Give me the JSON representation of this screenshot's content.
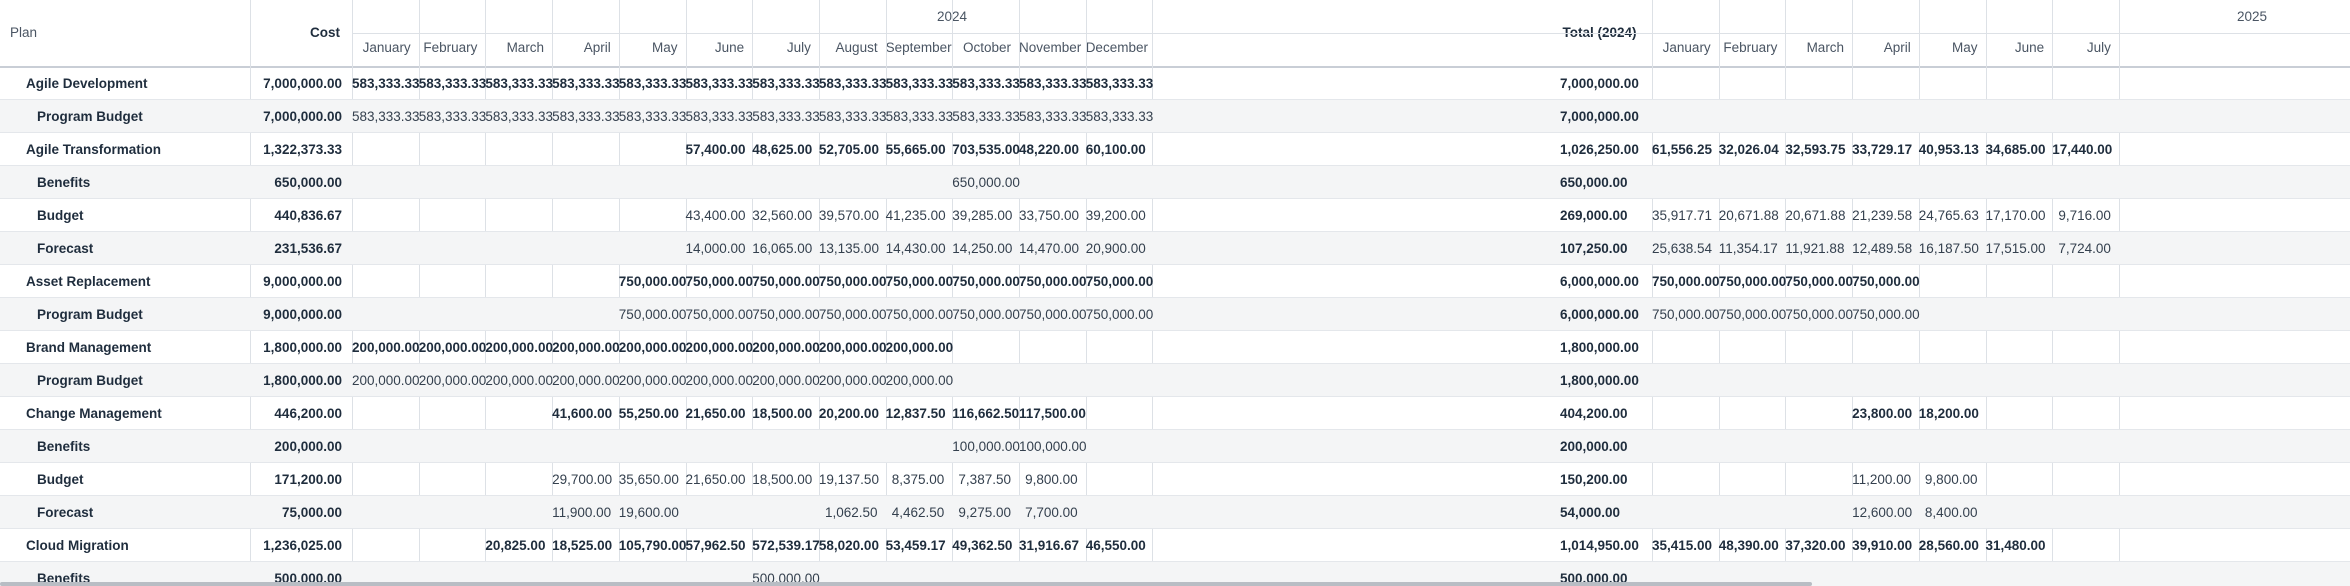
{
  "header": {
    "plan_label": "Plan",
    "cost_label": "Cost",
    "year_2024": "2024",
    "total_2024_label": "Total (2024)",
    "year_2025": "2025",
    "months_2024": [
      "January",
      "February",
      "March",
      "April",
      "May",
      "June",
      "July",
      "August",
      "September",
      "October",
      "November",
      "December"
    ],
    "months_2025": [
      "January",
      "February",
      "March",
      "April",
      "May",
      "June",
      "July"
    ]
  },
  "rows": [
    {
      "name": "Agile Development",
      "level": 0,
      "cost": "7,000,000.00",
      "m": [
        "583,333.33",
        "583,333.33",
        "583,333.33",
        "583,333.33",
        "583,333.33",
        "583,333.33",
        "583,333.33",
        "583,333.33",
        "583,333.33",
        "583,333.33",
        "583,333.33",
        "583,333.33"
      ],
      "total": "7,000,000.00",
      "n": [
        "",
        "",
        "",
        "",
        "",
        "",
        ""
      ]
    },
    {
      "name": "Program Budget",
      "level": 1,
      "cost": "7,000,000.00",
      "m": [
        "583,333.33",
        "583,333.33",
        "583,333.33",
        "583,333.33",
        "583,333.33",
        "583,333.33",
        "583,333.33",
        "583,333.33",
        "583,333.33",
        "583,333.33",
        "583,333.33",
        "583,333.33"
      ],
      "total": "7,000,000.00",
      "n": [
        "",
        "",
        "",
        "",
        "",
        "",
        ""
      ]
    },
    {
      "name": "Agile Transformation",
      "level": 0,
      "cost": "1,322,373.33",
      "m": [
        "",
        "",
        "",
        "",
        "",
        "57,400.00",
        "48,625.00",
        "52,705.00",
        "55,665.00",
        "703,535.00",
        "48,220.00",
        "60,100.00"
      ],
      "total": "1,026,250.00",
      "n": [
        "61,556.25",
        "32,026.04",
        "32,593.75",
        "33,729.17",
        "40,953.13",
        "34,685.00",
        "17,440.00"
      ]
    },
    {
      "name": "Benefits",
      "level": 1,
      "cost": "650,000.00",
      "m": [
        "",
        "",
        "",
        "",
        "",
        "",
        "",
        "",
        "",
        "650,000.00",
        "",
        ""
      ],
      "total": "650,000.00",
      "n": [
        "",
        "",
        "",
        "",
        "",
        "",
        ""
      ]
    },
    {
      "name": "Budget",
      "level": 1,
      "cost": "440,836.67",
      "m": [
        "",
        "",
        "",
        "",
        "",
        "43,400.00",
        "32,560.00",
        "39,570.00",
        "41,235.00",
        "39,285.00",
        "33,750.00",
        "39,200.00"
      ],
      "total": "269,000.00",
      "n": [
        "35,917.71",
        "20,671.88",
        "20,671.88",
        "21,239.58",
        "24,765.63",
        "17,170.00",
        "9,716.00"
      ]
    },
    {
      "name": "Forecast",
      "level": 1,
      "cost": "231,536.67",
      "m": [
        "",
        "",
        "",
        "",
        "",
        "14,000.00",
        "16,065.00",
        "13,135.00",
        "14,430.00",
        "14,250.00",
        "14,470.00",
        "20,900.00"
      ],
      "total": "107,250.00",
      "n": [
        "25,638.54",
        "11,354.17",
        "11,921.88",
        "12,489.58",
        "16,187.50",
        "17,515.00",
        "7,724.00"
      ]
    },
    {
      "name": "Asset Replacement",
      "level": 0,
      "cost": "9,000,000.00",
      "m": [
        "",
        "",
        "",
        "",
        "750,000.00",
        "750,000.00",
        "750,000.00",
        "750,000.00",
        "750,000.00",
        "750,000.00",
        "750,000.00",
        "750,000.00"
      ],
      "total": "6,000,000.00",
      "n": [
        "750,000.00",
        "750,000.00",
        "750,000.00",
        "750,000.00",
        "",
        "",
        ""
      ]
    },
    {
      "name": "Program Budget",
      "level": 1,
      "cost": "9,000,000.00",
      "m": [
        "",
        "",
        "",
        "",
        "750,000.00",
        "750,000.00",
        "750,000.00",
        "750,000.00",
        "750,000.00",
        "750,000.00",
        "750,000.00",
        "750,000.00"
      ],
      "total": "6,000,000.00",
      "n": [
        "750,000.00",
        "750,000.00",
        "750,000.00",
        "750,000.00",
        "",
        "",
        ""
      ]
    },
    {
      "name": "Brand Management",
      "level": 0,
      "cost": "1,800,000.00",
      "m": [
        "200,000.00",
        "200,000.00",
        "200,000.00",
        "200,000.00",
        "200,000.00",
        "200,000.00",
        "200,000.00",
        "200,000.00",
        "200,000.00",
        "",
        "",
        ""
      ],
      "total": "1,800,000.00",
      "n": [
        "",
        "",
        "",
        "",
        "",
        "",
        ""
      ]
    },
    {
      "name": "Program Budget",
      "level": 1,
      "cost": "1,800,000.00",
      "m": [
        "200,000.00",
        "200,000.00",
        "200,000.00",
        "200,000.00",
        "200,000.00",
        "200,000.00",
        "200,000.00",
        "200,000.00",
        "200,000.00",
        "",
        "",
        ""
      ],
      "total": "1,800,000.00",
      "n": [
        "",
        "",
        "",
        "",
        "",
        "",
        ""
      ]
    },
    {
      "name": "Change Management",
      "level": 0,
      "cost": "446,200.00",
      "m": [
        "",
        "",
        "",
        "41,600.00",
        "55,250.00",
        "21,650.00",
        "18,500.00",
        "20,200.00",
        "12,837.50",
        "116,662.50",
        "117,500.00",
        ""
      ],
      "total": "404,200.00",
      "n": [
        "",
        "",
        "",
        "23,800.00",
        "18,200.00",
        "",
        ""
      ]
    },
    {
      "name": "Benefits",
      "level": 1,
      "cost": "200,000.00",
      "m": [
        "",
        "",
        "",
        "",
        "",
        "",
        "",
        "",
        "",
        "100,000.00",
        "100,000.00",
        ""
      ],
      "total": "200,000.00",
      "n": [
        "",
        "",
        "",
        "",
        "",
        "",
        ""
      ]
    },
    {
      "name": "Budget",
      "level": 1,
      "cost": "171,200.00",
      "m": [
        "",
        "",
        "",
        "29,700.00",
        "35,650.00",
        "21,650.00",
        "18,500.00",
        "19,137.50",
        "8,375.00",
        "7,387.50",
        "9,800.00",
        ""
      ],
      "total": "150,200.00",
      "n": [
        "",
        "",
        "",
        "11,200.00",
        "9,800.00",
        "",
        ""
      ]
    },
    {
      "name": "Forecast",
      "level": 1,
      "cost": "75,000.00",
      "m": [
        "",
        "",
        "",
        "11,900.00",
        "19,600.00",
        "",
        "",
        "1,062.50",
        "4,462.50",
        "9,275.00",
        "7,700.00",
        ""
      ],
      "total": "54,000.00",
      "n": [
        "",
        "",
        "",
        "12,600.00",
        "8,400.00",
        "",
        ""
      ]
    },
    {
      "name": "Cloud Migration",
      "level": 0,
      "cost": "1,236,025.00",
      "m": [
        "",
        "",
        "20,825.00",
        "18,525.00",
        "105,790.00",
        "57,962.50",
        "572,539.17",
        "58,020.00",
        "53,459.17",
        "49,362.50",
        "31,916.67",
        "46,550.00"
      ],
      "total": "1,014,950.00",
      "n": [
        "35,415.00",
        "48,390.00",
        "37,320.00",
        "39,910.00",
        "28,560.00",
        "31,480.00",
        ""
      ]
    },
    {
      "name": "Benefits",
      "level": 1,
      "cost": "500,000.00",
      "m": [
        "",
        "",
        "",
        "",
        "",
        "",
        "500,000.00",
        "",
        "",
        "",
        "",
        ""
      ],
      "total": "500,000.00",
      "n": [
        "",
        "",
        "",
        "",
        "",
        "",
        ""
      ]
    }
  ]
}
